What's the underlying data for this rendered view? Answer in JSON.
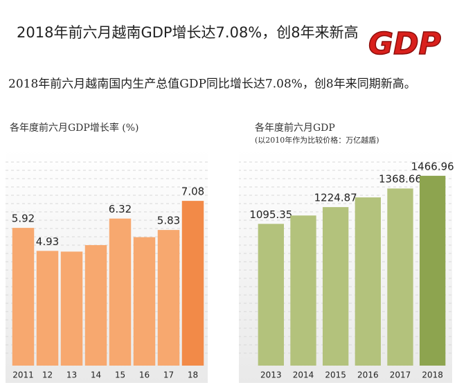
{
  "title": "2018年前六月越南GDP增长达7.08%，创8年来新高",
  "logo": "GDP",
  "subtitle": "2018年前六月越南国内生产总值GDP同比增长达7.08%，创8年来同期新高。",
  "chart_data": [
    {
      "type": "bar",
      "title": "各年度前六月GDP增长率 (%)",
      "categories": [
        "2011",
        "12",
        "13",
        "14",
        "15",
        "16",
        "17",
        "18"
      ],
      "values": [
        5.92,
        4.93,
        4.9,
        5.18,
        6.32,
        5.52,
        5.83,
        7.08
      ],
      "value_labels": [
        "5.92",
        "4.93",
        null,
        null,
        "6.32",
        null,
        "5.83",
        "7.08"
      ],
      "colors": [
        "#f7a86f",
        "#f7a86f",
        "#f7a86f",
        "#f7a86f",
        "#f7a86f",
        "#f7a86f",
        "#f7a86f",
        "#f28a48"
      ],
      "ylim": [
        0,
        7.5
      ]
    },
    {
      "type": "bar",
      "title": "各年度前六月GDP",
      "subtitle": "(以2010年作为比较价格：万亿越盾)",
      "categories": [
        "2013",
        "2014",
        "2015",
        "2016",
        "2017",
        "2018"
      ],
      "values": [
        1095.35,
        1160,
        1224.87,
        1300,
        1368.66,
        1466.96
      ],
      "value_labels": [
        "1095.35",
        null,
        "1224.87",
        null,
        "1368.66",
        "1466.96"
      ],
      "colors": [
        "#b3c27c",
        "#b3c27c",
        "#b3c27c",
        "#b3c27c",
        "#b3c27c",
        "#8da44f"
      ],
      "ylim": [
        0,
        1600
      ]
    }
  ]
}
